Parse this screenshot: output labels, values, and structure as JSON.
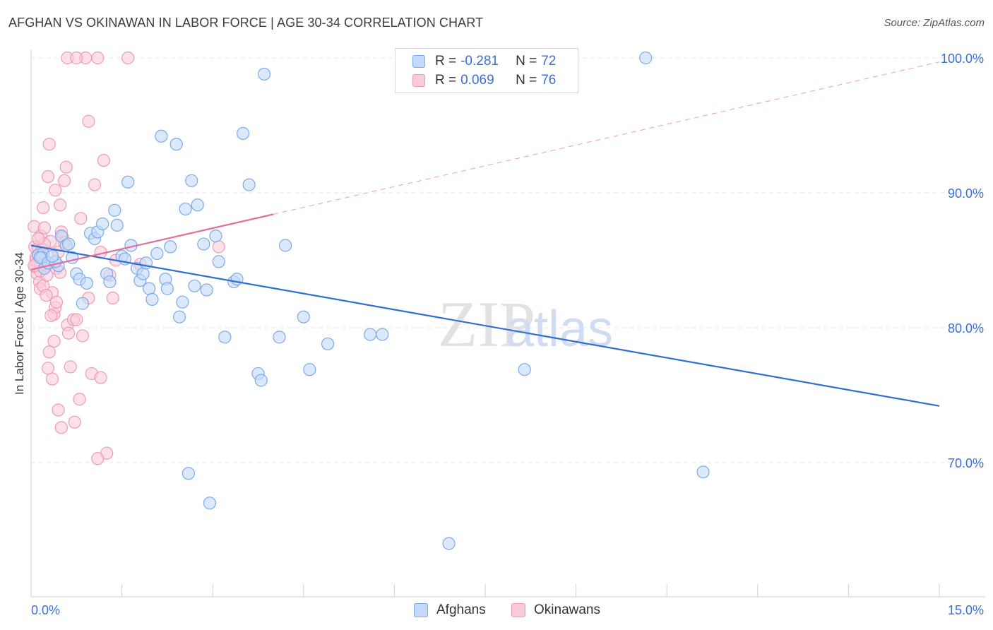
{
  "title": "AFGHAN VS OKINAWAN IN LABOR FORCE | AGE 30-34 CORRELATION CHART",
  "source": "Source: ZipAtlas.com",
  "watermark": {
    "zip": "ZIP",
    "atlas": "atlas"
  },
  "legend": {
    "rows": [
      {
        "r_label": "R =",
        "r_value": "-0.281",
        "n_label": "N =",
        "n_value": "72"
      },
      {
        "r_label": "R =",
        "r_value": "0.069",
        "n_label": "N =",
        "n_value": "76"
      }
    ]
  },
  "bottom_legend": [
    {
      "label": "Afghans"
    },
    {
      "label": "Okinawans"
    }
  ],
  "chart_data": {
    "type": "scatter",
    "title": "AFGHAN VS OKINAWAN IN LABOR FORCE | AGE 30-34 CORRELATION CHART",
    "xlabel": "",
    "ylabel": "In Labor Force | Age 30-34",
    "xlim": [
      0,
      15
    ],
    "ylim": [
      60,
      100
    ],
    "x_tick_labels": [
      {
        "value": 0,
        "label": "0.0%"
      },
      {
        "value": 15,
        "label": "15.0%"
      }
    ],
    "y_tick_labels": [
      {
        "value": 70,
        "label": "70.0%"
      },
      {
        "value": 80,
        "label": "80.0%"
      },
      {
        "value": 90,
        "label": "90.0%"
      },
      {
        "value": 100,
        "label": "100.0%"
      }
    ],
    "grid": true,
    "series": [
      {
        "name": "Afghans",
        "color": "#7aaae8",
        "fill": "#c5dafa",
        "line_color": "#2f6fd0",
        "trend": {
          "x0": 0,
          "y0": 86.1,
          "x1": 15,
          "y1": 74.2,
          "solid_until": 15
        },
        "points": [
          [
            0.12,
            85.4
          ],
          [
            0.2,
            85.5
          ],
          [
            0.18,
            85.2
          ],
          [
            0.22,
            84.4
          ],
          [
            0.45,
            84.6
          ],
          [
            0.5,
            86.8
          ],
          [
            0.58,
            86.1
          ],
          [
            0.62,
            86.2
          ],
          [
            0.68,
            85.2
          ],
          [
            0.75,
            84.0
          ],
          [
            0.8,
            83.6
          ],
          [
            0.85,
            81.8
          ],
          [
            0.92,
            83.3
          ],
          [
            0.98,
            87.0
          ],
          [
            1.05,
            86.6
          ],
          [
            1.1,
            87.1
          ],
          [
            1.18,
            87.7
          ],
          [
            1.25,
            84.0
          ],
          [
            1.3,
            83.4
          ],
          [
            1.38,
            88.7
          ],
          [
            1.42,
            87.6
          ],
          [
            1.5,
            85.3
          ],
          [
            1.55,
            85.1
          ],
          [
            1.6,
            90.8
          ],
          [
            1.65,
            86.1
          ],
          [
            1.75,
            84.4
          ],
          [
            1.8,
            83.5
          ],
          [
            1.85,
            84.0
          ],
          [
            1.9,
            84.8
          ],
          [
            1.95,
            82.9
          ],
          [
            2.0,
            82.1
          ],
          [
            2.08,
            85.5
          ],
          [
            2.15,
            94.2
          ],
          [
            2.22,
            83.6
          ],
          [
            2.25,
            82.9
          ],
          [
            2.3,
            86.0
          ],
          [
            2.4,
            93.6
          ],
          [
            2.45,
            80.8
          ],
          [
            2.5,
            81.9
          ],
          [
            2.55,
            88.8
          ],
          [
            2.6,
            69.2
          ],
          [
            2.65,
            90.9
          ],
          [
            2.7,
            83.1
          ],
          [
            2.75,
            89.1
          ],
          [
            2.85,
            86.2
          ],
          [
            2.9,
            82.8
          ],
          [
            2.95,
            67.0
          ],
          [
            3.05,
            86.8
          ],
          [
            3.1,
            84.9
          ],
          [
            3.2,
            79.3
          ],
          [
            3.35,
            83.4
          ],
          [
            3.4,
            83.6
          ],
          [
            3.5,
            94.4
          ],
          [
            3.6,
            90.6
          ],
          [
            3.75,
            76.6
          ],
          [
            3.8,
            76.1
          ],
          [
            3.85,
            98.8
          ],
          [
            4.1,
            79.3
          ],
          [
            4.2,
            86.1
          ],
          [
            4.5,
            80.8
          ],
          [
            4.6,
            76.9
          ],
          [
            4.9,
            78.8
          ],
          [
            5.6,
            79.5
          ],
          [
            5.8,
            79.5
          ],
          [
            6.9,
            64.0
          ],
          [
            8.15,
            76.9
          ],
          [
            10.15,
            100.0
          ],
          [
            11.1,
            69.3
          ],
          [
            0.15,
            85.2
          ],
          [
            0.28,
            84.8
          ],
          [
            0.4,
            84.9
          ],
          [
            0.35,
            85.3
          ]
        ]
      },
      {
        "name": "Okinawans",
        "color": "#ee9ab5",
        "fill": "#fbcbdb",
        "line_color": "#e0709a",
        "trend": {
          "x0": 0,
          "y0": 84.3,
          "x1": 15,
          "y1": 99.7,
          "solid_until": 4.0
        },
        "points": [
          [
            0.05,
            87.5
          ],
          [
            0.06,
            86.0
          ],
          [
            0.08,
            85.2
          ],
          [
            0.1,
            84.9
          ],
          [
            0.07,
            84.5
          ],
          [
            0.12,
            85.9
          ],
          [
            0.1,
            84.0
          ],
          [
            0.14,
            83.4
          ],
          [
            0.15,
            82.9
          ],
          [
            0.16,
            86.8
          ],
          [
            0.18,
            85.3
          ],
          [
            0.2,
            88.9
          ],
          [
            0.22,
            87.4
          ],
          [
            0.25,
            84.6
          ],
          [
            0.28,
            91.2
          ],
          [
            0.3,
            93.6
          ],
          [
            0.32,
            86.4
          ],
          [
            0.35,
            82.6
          ],
          [
            0.38,
            81.0
          ],
          [
            0.4,
            90.2
          ],
          [
            0.42,
            84.4
          ],
          [
            0.45,
            85.6
          ],
          [
            0.48,
            89.1
          ],
          [
            0.5,
            87.1
          ],
          [
            0.52,
            86.7
          ],
          [
            0.55,
            90.9
          ],
          [
            0.58,
            91.9
          ],
          [
            0.6,
            80.2
          ],
          [
            0.62,
            79.6
          ],
          [
            0.65,
            77.1
          ],
          [
            0.7,
            80.6
          ],
          [
            0.72,
            73.0
          ],
          [
            0.75,
            80.6
          ],
          [
            0.8,
            74.7
          ],
          [
            0.82,
            88.1
          ],
          [
            0.85,
            79.4
          ],
          [
            0.9,
            100.0
          ],
          [
            0.95,
            82.2
          ],
          [
            1.0,
            76.6
          ],
          [
            1.05,
            90.6
          ],
          [
            1.1,
            100.0
          ],
          [
            1.15,
            76.3
          ],
          [
            1.2,
            92.4
          ],
          [
            1.25,
            70.7
          ],
          [
            1.3,
            83.9
          ],
          [
            1.35,
            82.2
          ],
          [
            1.4,
            85.0
          ],
          [
            1.6,
            100.0
          ],
          [
            3.1,
            86.0
          ],
          [
            1.8,
            84.7
          ],
          [
            0.95,
            95.3
          ],
          [
            1.1,
            70.3
          ],
          [
            0.5,
            72.6
          ],
          [
            0.45,
            73.9
          ],
          [
            0.3,
            78.2
          ],
          [
            0.28,
            77.0
          ],
          [
            0.35,
            76.2
          ],
          [
            0.4,
            81.5
          ],
          [
            0.42,
            81.9
          ],
          [
            0.2,
            83.1
          ],
          [
            0.15,
            84.2
          ],
          [
            0.18,
            85.8
          ],
          [
            0.22,
            86.2
          ],
          [
            0.25,
            82.4
          ],
          [
            0.3,
            84.8
          ],
          [
            0.12,
            86.6
          ],
          [
            0.08,
            85.0
          ],
          [
            0.05,
            84.6
          ],
          [
            0.33,
            80.9
          ],
          [
            0.38,
            79.0
          ],
          [
            0.6,
            100.0
          ],
          [
            0.75,
            100.0
          ],
          [
            1.15,
            85.6
          ],
          [
            0.55,
            86.3
          ],
          [
            0.48,
            84.1
          ],
          [
            0.26,
            83.9
          ]
        ]
      }
    ]
  }
}
